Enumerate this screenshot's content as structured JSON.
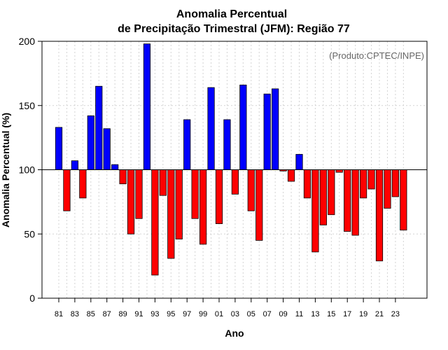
{
  "chart_data": {
    "type": "bar",
    "title": "Anomalia Percentual",
    "subtitle": "de Precipitação Trimestral (JFM): Região 77",
    "xlabel": "Ano",
    "ylabel": "Anomalia Percentual (%)",
    "annotation": "(Produto:CPTEC/INPE)",
    "baseline": 100,
    "ylim": [
      0,
      200
    ],
    "yticks": [
      0,
      50,
      100,
      150,
      200
    ],
    "xticks": [
      "81",
      "83",
      "85",
      "87",
      "89",
      "91",
      "93",
      "95",
      "97",
      "99",
      "01",
      "03",
      "05",
      "07",
      "09",
      "11",
      "13",
      "15",
      "17",
      "19",
      "21",
      "23"
    ],
    "categories": [
      "1981",
      "1982",
      "1983",
      "1984",
      "1985",
      "1986",
      "1987",
      "1988",
      "1989",
      "1990",
      "1991",
      "1992",
      "1993",
      "1994",
      "1995",
      "1996",
      "1997",
      "1998",
      "1999",
      "2000",
      "2001",
      "2002",
      "2003",
      "2004",
      "2005",
      "2006",
      "2007",
      "2008",
      "2009",
      "2010",
      "2011",
      "2012",
      "2013",
      "2014",
      "2015",
      "2016",
      "2017",
      "2018",
      "2019",
      "2020",
      "2021",
      "2022",
      "2023",
      "2024"
    ],
    "values": [
      133,
      68,
      107,
      78,
      142,
      165,
      132,
      104,
      89,
      50,
      62,
      198,
      18,
      80,
      31,
      46,
      139,
      62,
      42,
      164,
      58,
      139,
      81,
      166,
      68,
      45,
      159,
      163,
      99,
      91,
      112,
      78,
      36,
      57,
      65,
      98,
      52,
      49,
      78,
      85,
      29,
      70,
      79,
      53
    ],
    "colors": {
      "above": "#0000ff",
      "below": "#ff0000",
      "grid": "#d3d3d3"
    },
    "grid": true
  }
}
